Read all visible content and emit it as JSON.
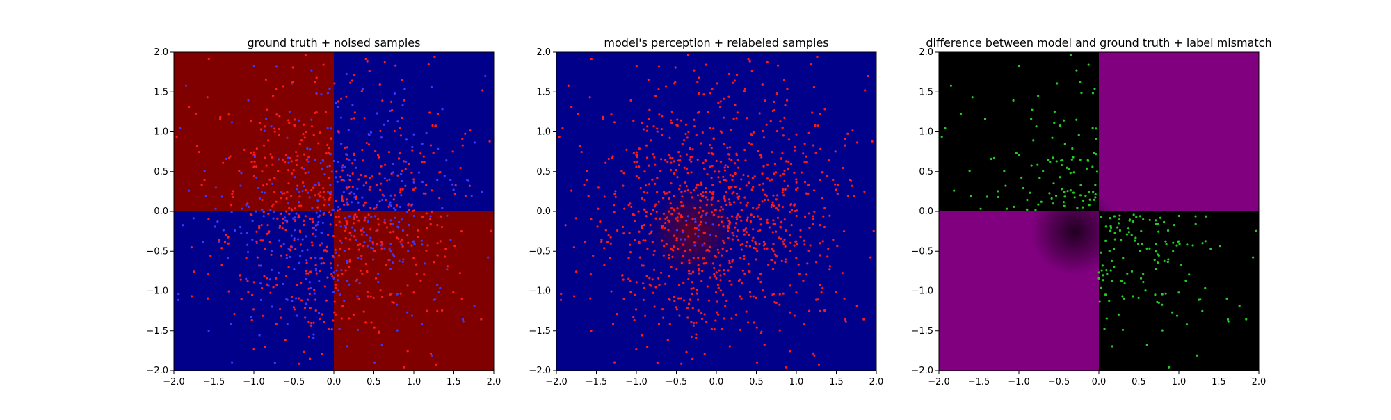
{
  "figure": {
    "background": "#ffffff"
  },
  "colors": {
    "red": "#800000",
    "blue": "#00008b",
    "purple": "#800080",
    "black": "#000000",
    "red_point": "#ff1a1a",
    "blue_point": "#3a3aff",
    "green_point": "#22cc22"
  },
  "chart_data": [
    {
      "type": "heatmap",
      "title": "ground truth + noised samples",
      "xlim": [
        -2.0,
        2.0
      ],
      "ylim": [
        -2.0,
        2.0
      ],
      "x_ticks": [
        "−2.0",
        "−1.5",
        "−1.0",
        "−0.5",
        "0.0",
        "0.5",
        "1.0",
        "1.5",
        "2.0"
      ],
      "y_ticks": [
        "−2.0",
        "−1.5",
        "−1.0",
        "−0.5",
        "0.0",
        "0.5",
        "1.0",
        "1.5",
        "2.0"
      ],
      "background_regions": [
        {
          "x": [
            -2.0,
            0.0
          ],
          "y": [
            0.0,
            2.0
          ],
          "color": "#800000"
        },
        {
          "x": [
            0.0,
            2.0
          ],
          "y": [
            0.0,
            2.0
          ],
          "color": "#00008b"
        },
        {
          "x": [
            -2.0,
            0.0
          ],
          "y": [
            -2.0,
            0.0
          ],
          "color": "#00008b"
        },
        {
          "x": [
            0.0,
            2.0
          ],
          "y": [
            -2.0,
            0.0
          ],
          "color": "#800000"
        }
      ],
      "scatter": {
        "count": 1000,
        "distribution": "gaussian",
        "x_range": [
          -2.0,
          2.0
        ],
        "y_range": [
          -2.0,
          2.0
        ],
        "class_colors": [
          "#ff1a1a",
          "#3a3aff"
        ]
      },
      "grid": false
    },
    {
      "type": "heatmap",
      "title": "model's perception + relabeled samples",
      "xlim": [
        -2.0,
        2.0
      ],
      "ylim": [
        -2.0,
        2.0
      ],
      "x_ticks": [
        "−2.0",
        "−1.5",
        "−1.0",
        "−0.5",
        "0.0",
        "0.5",
        "1.0",
        "1.5",
        "2.0"
      ],
      "y_ticks": [
        "−2.0",
        "−1.5",
        "−1.0",
        "−0.5",
        "0.0",
        "0.5",
        "1.0",
        "1.5",
        "2.0"
      ],
      "background_regions": [
        {
          "x": [
            -2.0,
            2.0
          ],
          "y": [
            -2.0,
            2.0
          ],
          "color": "#00008b"
        }
      ],
      "blob": {
        "center": [
          -0.3,
          -0.25
        ],
        "radius": 0.55,
        "color": "#800000"
      },
      "scatter": {
        "count": 1000,
        "distribution": "gaussian",
        "x_range": [
          -2.0,
          2.0
        ],
        "y_range": [
          -2.0,
          2.0
        ],
        "class_colors": [
          "#ff1a1a",
          "#3a3aff"
        ]
      },
      "grid": false
    },
    {
      "type": "heatmap",
      "title": "difference between model and ground truth + label mismatch",
      "xlim": [
        -2.0,
        2.0
      ],
      "ylim": [
        -2.0,
        2.0
      ],
      "x_ticks": [
        "−2.0",
        "−1.5",
        "−1.0",
        "−0.5",
        "0.0",
        "0.5",
        "1.0",
        "1.5",
        "2.0"
      ],
      "y_ticks": [
        "−2.0",
        "−1.5",
        "−1.0",
        "−0.5",
        "0.0",
        "0.5",
        "1.0",
        "1.5",
        "2.0"
      ],
      "background_regions": [
        {
          "x": [
            -2.0,
            0.0
          ],
          "y": [
            0.0,
            2.0
          ],
          "color": "#000000"
        },
        {
          "x": [
            0.0,
            2.0
          ],
          "y": [
            0.0,
            2.0
          ],
          "color": "#800080"
        },
        {
          "x": [
            -2.0,
            0.0
          ],
          "y": [
            -2.0,
            0.0
          ],
          "color": "#800080"
        },
        {
          "x": [
            0.0,
            2.0
          ],
          "y": [
            -2.0,
            0.0
          ],
          "color": "#000000"
        }
      ],
      "blob": {
        "center": [
          -0.3,
          -0.25
        ],
        "radius": 0.55,
        "color": "#000000"
      },
      "scatter": {
        "count": 450,
        "distribution": "gaussian",
        "quadrants": [
          "top-left",
          "bottom-right"
        ],
        "x_range": [
          -2.0,
          2.0
        ],
        "y_range": [
          -2.0,
          2.0
        ],
        "class_colors": [
          "#22cc22"
        ]
      },
      "grid": false
    }
  ]
}
